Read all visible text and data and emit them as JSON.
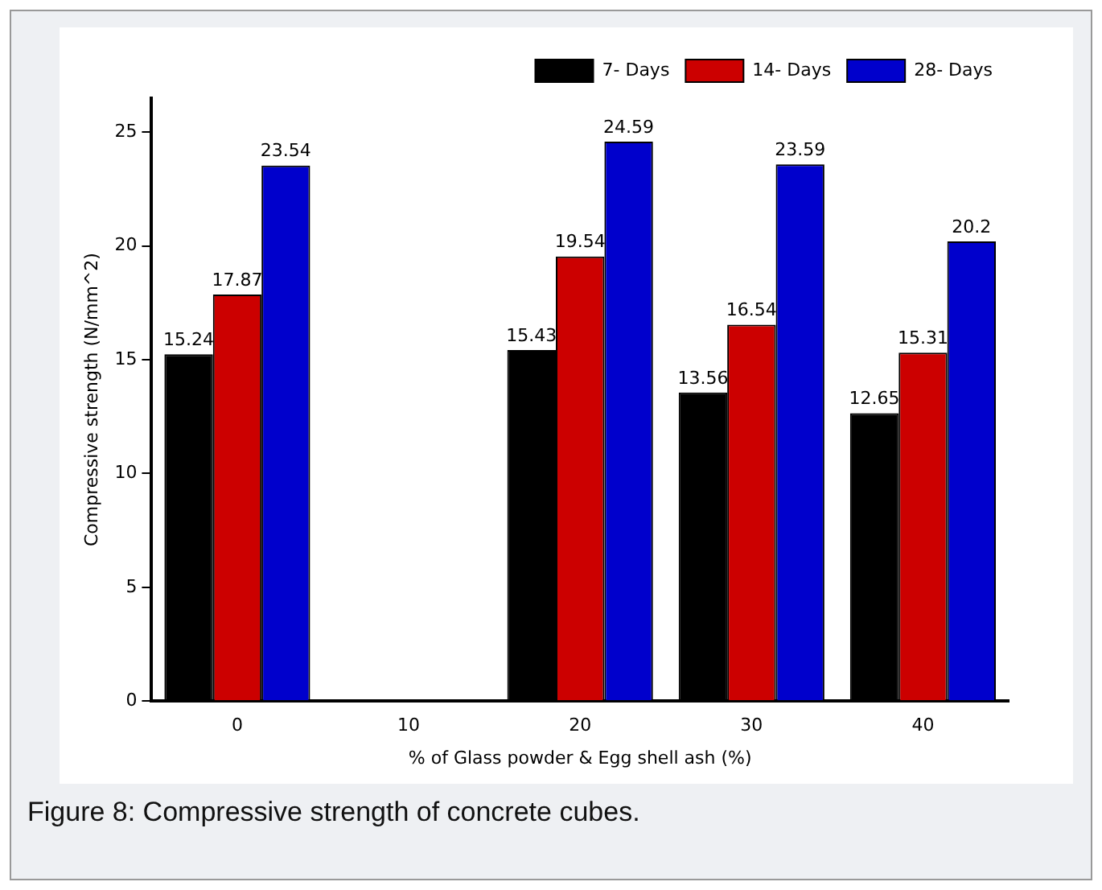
{
  "chart_data": {
    "type": "bar",
    "xlabel": "% of Glass powder & Egg shell ash (%)",
    "ylabel": "Compressive strength (N/mm^2)",
    "categories": [
      "0",
      "10",
      "20",
      "30",
      "40"
    ],
    "series": [
      {
        "name": "7- Days",
        "color": "#000000",
        "values": [
          15.24,
          null,
          15.43,
          13.56,
          12.65
        ]
      },
      {
        "name": "14- Days",
        "color": "#cc0000",
        "values": [
          17.87,
          null,
          19.54,
          16.54,
          15.31
        ]
      },
      {
        "name": "28- Days",
        "color": "#0000cc",
        "values": [
          23.54,
          null,
          24.59,
          23.59,
          20.2
        ]
      }
    ],
    "ylim": [
      0,
      26.5
    ],
    "yticks": [
      0,
      5,
      10,
      15,
      20,
      25
    ],
    "grid": false,
    "legend": "top right",
    "data_labels": true,
    "annotations": [
      "Figure 8: Compressive strength of concrete cubes."
    ]
  }
}
